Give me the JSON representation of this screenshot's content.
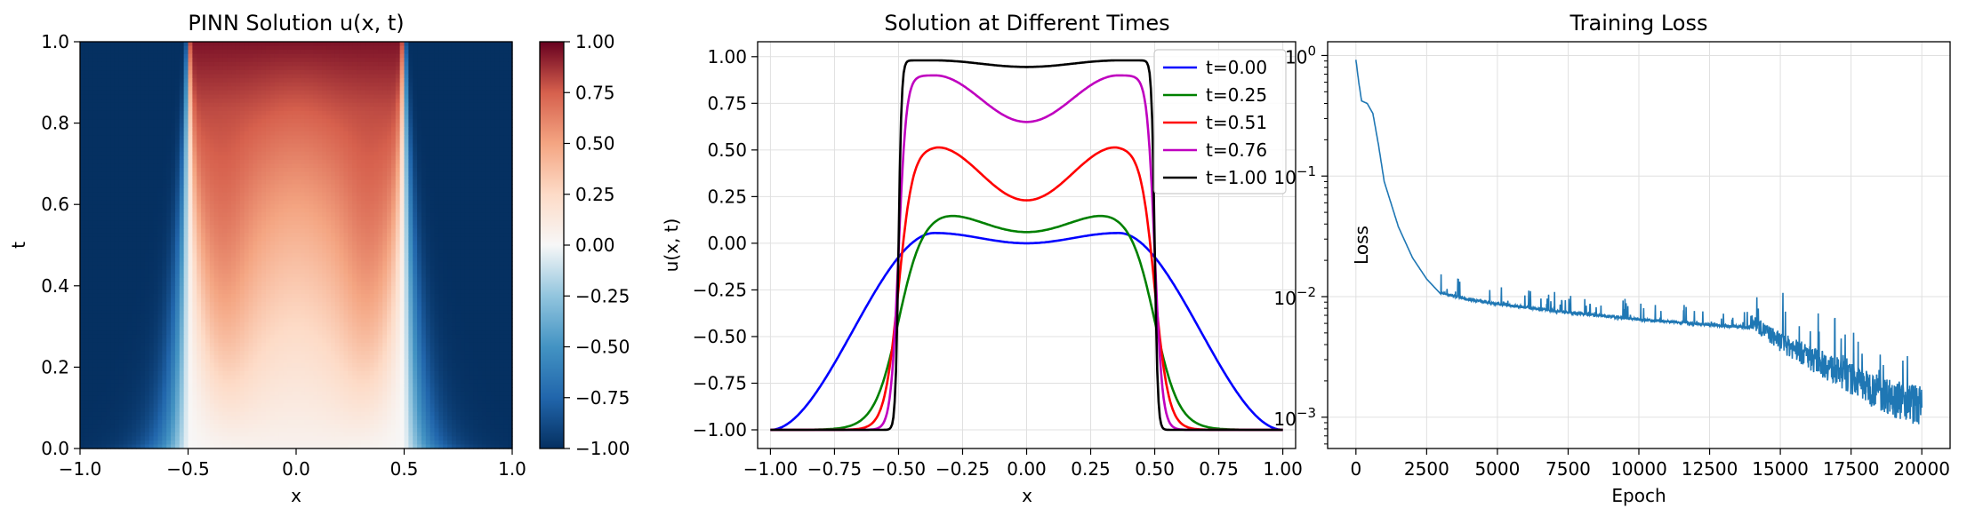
{
  "chart_data": [
    {
      "type": "heatmap",
      "title": "PINN Solution u(x, t)",
      "xlabel": "x",
      "ylabel": "t",
      "xlim": [
        -1.0,
        1.0
      ],
      "ylim": [
        0.0,
        1.0
      ],
      "x_ticks": [
        "−1.0",
        "−0.5",
        "0.0",
        "0.5",
        "1.0"
      ],
      "y_ticks": [
        "0.0",
        "0.2",
        "0.4",
        "0.6",
        "0.8",
        "1.0"
      ],
      "colormap": "RdBu_r",
      "colorbar": {
        "range": [
          -1.0,
          1.0
        ],
        "ticks": [
          "1.00",
          "0.75",
          "0.50",
          "0.25",
          "0.00",
          "−0.25",
          "−0.50",
          "−0.75",
          "−1.00"
        ]
      },
      "description_values": {
        "interface_x": [
          -0.5,
          0.5
        ],
        "center_value_t1": 0.95,
        "outer_value": -1.0
      }
    },
    {
      "type": "line",
      "title": "Solution at Different Times",
      "xlabel": "x",
      "ylabel": "u(x, t)",
      "xlim": [
        -1.05,
        1.05
      ],
      "ylim": [
        -1.1,
        1.08
      ],
      "x_ticks": [
        "−1.00",
        "−0.75",
        "−0.50",
        "−0.25",
        "0.00",
        "0.25",
        "0.50",
        "0.75",
        "1.00"
      ],
      "y_ticks": [
        "1.00",
        "0.75",
        "0.50",
        "0.25",
        "0.00",
        "−0.25",
        "−0.50",
        "−0.75",
        "−1.00"
      ],
      "grid": true,
      "legend": "top-right",
      "series": [
        {
          "name": "t=0.00",
          "color": "#0000ff",
          "center": 0.0,
          "peak": 0.055,
          "peak_x": 0.36
        },
        {
          "name": "t=0.25",
          "color": "#008000",
          "center": 0.06,
          "peak": 0.17,
          "peak_x": 0.36
        },
        {
          "name": "t=0.51",
          "color": "#ff0000",
          "center": 0.23,
          "peak": 0.52,
          "peak_x": 0.36
        },
        {
          "name": "t=0.76",
          "color": "#bf00bf",
          "center": 0.65,
          "peak": 0.9,
          "peak_x": 0.36
        },
        {
          "name": "t=1.00",
          "color": "#000000",
          "center": 0.945,
          "peak": 0.98,
          "peak_x": 0.36
        }
      ]
    },
    {
      "type": "line",
      "title": "Training Loss",
      "xlabel": "Epoch",
      "ylabel": "Loss",
      "yscale": "log",
      "xlim": [
        -1000,
        21000
      ],
      "ylim": [
        0.00055,
        1.3
      ],
      "x_ticks": [
        "0",
        "2500",
        "5000",
        "7500",
        "10000",
        "12500",
        "15000",
        "17500",
        "20000"
      ],
      "y_ticks": [
        "10",
        "10",
        "10",
        "10"
      ],
      "y_tick_exponents": [
        "0",
        "−1",
        "−2",
        "−3"
      ],
      "grid": true,
      "color": "#1f77b4",
      "series": [
        {
          "x": [
            0,
            100,
            200,
            400,
            600,
            800,
            1000,
            1500,
            2000,
            2500,
            3000,
            4000,
            5000,
            7500,
            10000,
            12500,
            14000,
            15000,
            16000,
            17000,
            18000,
            19000,
            20000
          ],
          "y": [
            0.92,
            0.6,
            0.42,
            0.4,
            0.33,
            0.18,
            0.09,
            0.038,
            0.021,
            0.014,
            0.0105,
            0.0092,
            0.0085,
            0.0072,
            0.0063,
            0.0057,
            0.0054,
            0.0035,
            0.0025,
            0.0018,
            0.0013,
            0.001,
            0.00082
          ]
        }
      ]
    }
  ]
}
